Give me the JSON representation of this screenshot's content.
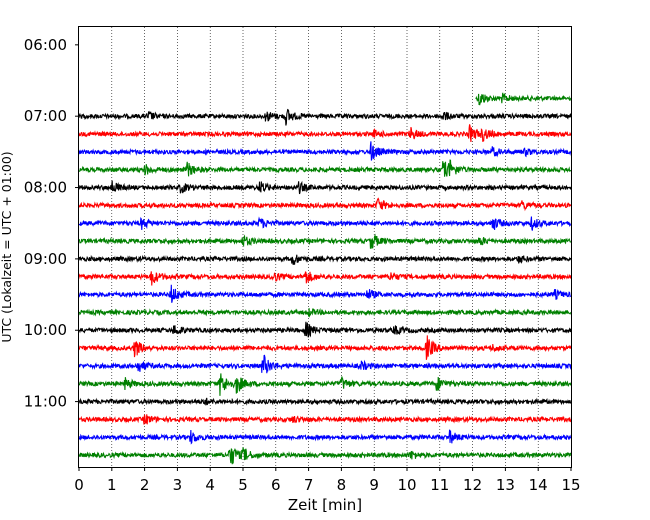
{
  "chart_data": {
    "type": "line",
    "title": "",
    "xlabel": "Zeit  [min]",
    "ylabel": "UTC (Lokalzeit = UTC + 01:00)",
    "xlim": [
      0,
      15
    ],
    "x_ticks": [
      0,
      1,
      2,
      3,
      4,
      5,
      6,
      7,
      8,
      9,
      10,
      11,
      12,
      13,
      14,
      15
    ],
    "x_tick_labels": [
      "0",
      "1",
      "2",
      "3",
      "4",
      "5",
      "6",
      "7",
      "8",
      "9",
      "10",
      "11",
      "12",
      "13",
      "14",
      "15"
    ],
    "y_ticks": [
      "06:00",
      "07:00",
      "08:00",
      "09:00",
      "10:00",
      "11:00"
    ],
    "y_tick_minutes": [
      0,
      60,
      120,
      180,
      240,
      300
    ],
    "ylim_minutes": [
      -15,
      355
    ],
    "y_inverted": true,
    "trace_interval_minutes": 15,
    "grid": "vertical dotted at each minute",
    "legend": "none",
    "color_cycle": [
      "#000000",
      "#ff0000",
      "#0000ff",
      "#008000"
    ],
    "traces": [
      {
        "row_minutes": 45,
        "color": "#008000",
        "x_start": 12.1,
        "x_end": 15,
        "events": [
          {
            "x": 12.2,
            "amp": 7
          },
          {
            "x": 12.9,
            "amp": 4
          }
        ]
      },
      {
        "row_minutes": 60,
        "color": "#000000",
        "x_start": 0,
        "x_end": 15,
        "events": [
          {
            "x": 2.1,
            "amp": 4
          },
          {
            "x": 5.7,
            "amp": 5
          },
          {
            "x": 6.3,
            "amp": 8
          },
          {
            "x": 11.1,
            "amp": 4
          }
        ]
      },
      {
        "row_minutes": 75,
        "color": "#ff0000",
        "x_start": 0,
        "x_end": 15,
        "events": [
          {
            "x": 9.0,
            "amp": 3
          },
          {
            "x": 10.1,
            "amp": 6
          },
          {
            "x": 11.9,
            "amp": 8
          },
          {
            "x": 12.3,
            "amp": 6
          }
        ]
      },
      {
        "row_minutes": 90,
        "color": "#0000ff",
        "x_start": 0,
        "x_end": 15,
        "events": [
          {
            "x": 8.9,
            "amp": 9
          },
          {
            "x": 12.6,
            "amp": 4
          },
          {
            "x": 13.6,
            "amp": 3
          }
        ]
      },
      {
        "row_minutes": 105,
        "color": "#008000",
        "x_start": 0,
        "x_end": 15,
        "events": [
          {
            "x": 2.0,
            "amp": 5
          },
          {
            "x": 3.3,
            "amp": 7
          },
          {
            "x": 11.1,
            "amp": 9
          },
          {
            "x": 11.3,
            "amp": 6
          }
        ]
      },
      {
        "row_minutes": 120,
        "color": "#000000",
        "x_start": 0,
        "x_end": 15,
        "events": [
          {
            "x": 1.0,
            "amp": 6
          },
          {
            "x": 3.1,
            "amp": 5
          },
          {
            "x": 5.5,
            "amp": 6
          },
          {
            "x": 6.7,
            "amp": 5
          }
        ]
      },
      {
        "row_minutes": 135,
        "color": "#ff0000",
        "x_start": 0,
        "x_end": 15,
        "events": [
          {
            "x": 9.1,
            "amp": 7
          },
          {
            "x": 13.5,
            "amp": 4
          }
        ]
      },
      {
        "row_minutes": 150,
        "color": "#0000ff",
        "x_start": 0,
        "x_end": 15,
        "events": [
          {
            "x": 1.9,
            "amp": 5
          },
          {
            "x": 5.5,
            "amp": 5
          },
          {
            "x": 12.6,
            "amp": 7
          },
          {
            "x": 13.8,
            "amp": 6
          }
        ]
      },
      {
        "row_minutes": 165,
        "color": "#008000",
        "x_start": 0,
        "x_end": 15,
        "events": [
          {
            "x": 5.0,
            "amp": 5
          },
          {
            "x": 8.9,
            "amp": 8
          },
          {
            "x": 12.2,
            "amp": 4
          }
        ]
      },
      {
        "row_minutes": 180,
        "color": "#000000",
        "x_start": 0,
        "x_end": 15,
        "events": [
          {
            "x": 6.5,
            "amp": 6
          },
          {
            "x": 13.4,
            "amp": 3
          }
        ]
      },
      {
        "row_minutes": 195,
        "color": "#ff0000",
        "x_start": 0,
        "x_end": 15,
        "events": [
          {
            "x": 2.2,
            "amp": 8
          },
          {
            "x": 5.9,
            "amp": 5
          },
          {
            "x": 6.9,
            "amp": 7
          },
          {
            "x": 9.5,
            "amp": 4
          }
        ]
      },
      {
        "row_minutes": 210,
        "color": "#0000ff",
        "x_start": 0,
        "x_end": 15,
        "events": [
          {
            "x": 2.8,
            "amp": 9
          },
          {
            "x": 8.8,
            "amp": 5
          },
          {
            "x": 14.5,
            "amp": 4
          }
        ]
      },
      {
        "row_minutes": 225,
        "color": "#008000",
        "x_start": 0,
        "x_end": 15,
        "events": [
          {
            "x": 7.0,
            "amp": 3
          }
        ]
      },
      {
        "row_minutes": 240,
        "color": "#000000",
        "x_start": 0,
        "x_end": 15,
        "events": [
          {
            "x": 2.9,
            "amp": 5
          },
          {
            "x": 6.9,
            "amp": 8
          },
          {
            "x": 9.6,
            "amp": 4
          }
        ]
      },
      {
        "row_minutes": 255,
        "color": "#ff0000",
        "x_start": 0,
        "x_end": 15,
        "events": [
          {
            "x": 1.7,
            "amp": 9
          },
          {
            "x": 10.6,
            "amp": 12
          },
          {
            "x": 12.6,
            "amp": 3
          }
        ]
      },
      {
        "row_minutes": 270,
        "color": "#0000ff",
        "x_start": 0,
        "x_end": 15,
        "events": [
          {
            "x": 1.8,
            "amp": 6
          },
          {
            "x": 5.6,
            "amp": 12
          },
          {
            "x": 8.6,
            "amp": 4
          }
        ]
      },
      {
        "row_minutes": 285,
        "color": "#008000",
        "x_start": 0,
        "x_end": 15,
        "events": [
          {
            "x": 1.4,
            "amp": 5
          },
          {
            "x": 4.3,
            "amp": 12
          },
          {
            "x": 4.8,
            "amp": 9
          },
          {
            "x": 8.0,
            "amp": 6
          },
          {
            "x": 10.9,
            "amp": 7
          }
        ]
      },
      {
        "row_minutes": 300,
        "color": "#000000",
        "x_start": 0,
        "x_end": 15,
        "events": [
          {
            "x": 3.8,
            "amp": 3
          }
        ]
      },
      {
        "row_minutes": 315,
        "color": "#ff0000",
        "x_start": 0,
        "x_end": 15,
        "events": [
          {
            "x": 2.0,
            "amp": 5
          },
          {
            "x": 6.5,
            "amp": 3
          }
        ]
      },
      {
        "row_minutes": 330,
        "color": "#0000ff",
        "x_start": 0,
        "x_end": 15,
        "events": [
          {
            "x": 3.4,
            "amp": 6
          },
          {
            "x": 11.3,
            "amp": 6
          }
        ]
      },
      {
        "row_minutes": 345,
        "color": "#008000",
        "x_start": 0,
        "x_end": 15,
        "events": [
          {
            "x": 4.6,
            "amp": 12
          },
          {
            "x": 5.0,
            "amp": 6
          },
          {
            "x": 10.1,
            "amp": 4
          }
        ]
      }
    ]
  }
}
